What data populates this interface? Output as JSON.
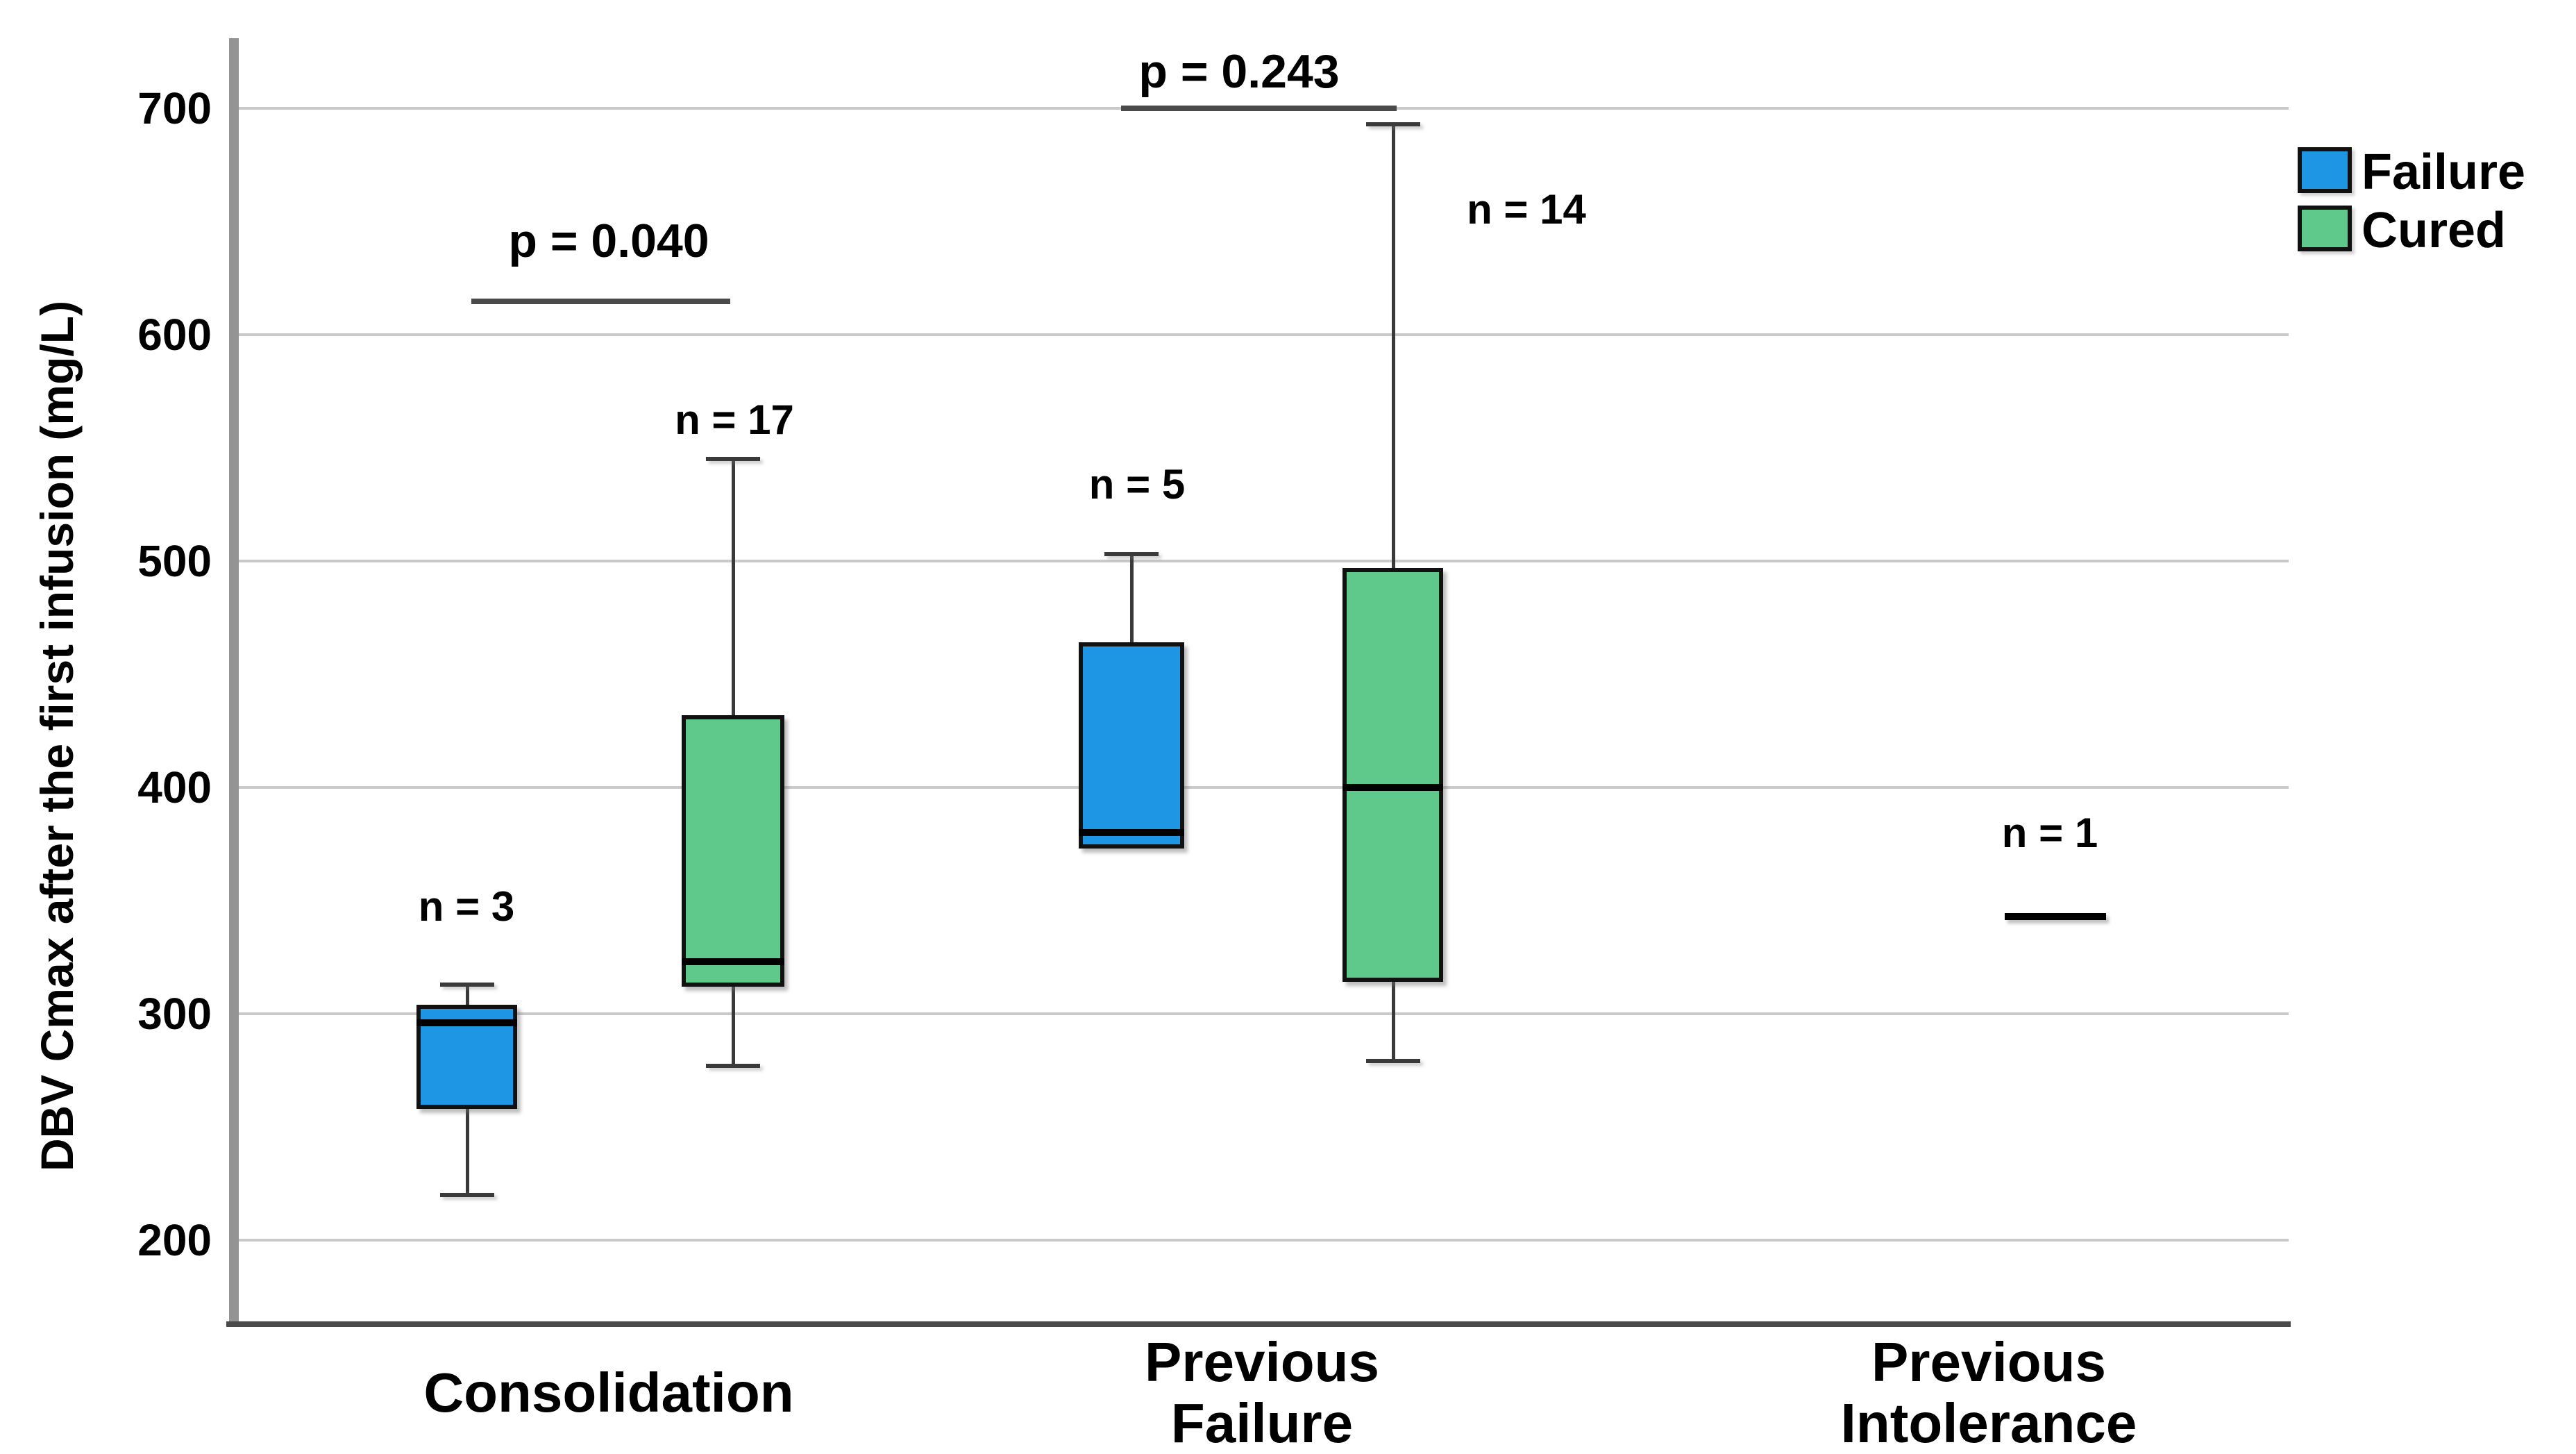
{
  "chart_data": {
    "type": "boxplot",
    "title": "",
    "xlabel": "",
    "ylabel": "DBV Cmax after the first infusion (mg/L)",
    "y_ticks": [
      700,
      600,
      500,
      400,
      300,
      200
    ],
    "ylim": [
      163,
      733
    ],
    "grid": true,
    "background_color": "#ffffff",
    "gridline_color": "#c9c9c9",
    "series_colors": {
      "Failure": "#1e96e4",
      "Cured": "#5fc98b"
    },
    "legend": {
      "position": "top-right",
      "items": [
        {
          "label": "Failure",
          "color": "#1e96e4"
        },
        {
          "label": "Cured",
          "color": "#5fc98b"
        }
      ]
    },
    "groups": [
      {
        "label_lines": [
          "Consolidation"
        ],
        "p_annotation": "p = 0.040",
        "boxes": [
          {
            "series": "Failure",
            "n_label": "n = 3",
            "stats": {
              "min": 220,
              "q1": 258,
              "median": 296,
              "q3": 304,
              "max": 313
            }
          },
          {
            "series": "Cured",
            "n_label": "n = 17",
            "stats": {
              "min": 277,
              "q1": 312,
              "median": 323,
              "q3": 432,
              "max": 545
            }
          }
        ]
      },
      {
        "label_lines": [
          "Previous",
          "Failure"
        ],
        "p_annotation": "p = 0.243",
        "boxes": [
          {
            "series": "Failure",
            "n_label": "n = 5",
            "lower_whisker": false,
            "stats": {
              "min": 373,
              "q1": 373,
              "median": 380,
              "q3": 464,
              "max": 503
            }
          },
          {
            "series": "Cured",
            "n_label": "n = 14",
            "stats": {
              "min": 279,
              "q1": 314,
              "median": 400,
              "q3": 497,
              "max": 693
            }
          }
        ]
      },
      {
        "label_lines": [
          "Previous",
          "Intolerance"
        ],
        "p_annotation": null,
        "boxes": [
          {
            "series": "Cured",
            "n_label": "n = 1",
            "single_line": true,
            "stats": {
              "median": 343
            }
          }
        ]
      }
    ]
  }
}
